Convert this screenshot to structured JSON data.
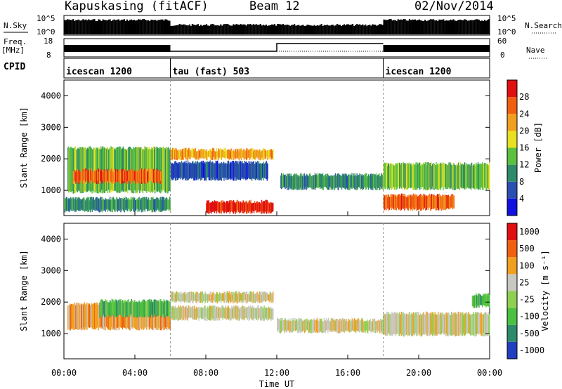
{
  "header": {
    "station": "Kapuskasing (fitACF)",
    "beam": "Beam 12",
    "date": "02/Nov/2014"
  },
  "strip_labels": {
    "nsky": "N.Sky",
    "nsky_top": "10^5",
    "nsky_bottom": "10^0",
    "nsearch": "N.Search",
    "nsearch_top": "10^5",
    "nsearch_bottom": "10^0",
    "freq": "Freq.",
    "freq_unit": "[MHz]",
    "freq_top": "18",
    "freq_bottom": "8",
    "nave": "Nave",
    "nave_top": "60",
    "nave_bottom": "0",
    "cpid": "CPID"
  },
  "cpid_segments": [
    {
      "label": "icescan 1200",
      "start_hour": 0,
      "end_hour": 6
    },
    {
      "label": "tau (fast) 503",
      "start_hour": 6,
      "end_hour": 18
    },
    {
      "label": "icescan 1200",
      "start_hour": 18,
      "end_hour": 24
    }
  ],
  "chart_data": [
    {
      "type": "heatmap",
      "title": "",
      "xlabel": "Time UT",
      "ylabel": "Slant Range [km]",
      "xlim": [
        0,
        24
      ],
      "ylim": [
        200,
        4500
      ],
      "x_ticks": [
        "00:00",
        "04:00",
        "08:00",
        "12:00",
        "16:00",
        "20:00",
        "00:00"
      ],
      "y_ticks": [
        "1000",
        "2000",
        "3000",
        "4000"
      ],
      "colorbar": {
        "label": "Power [dB]",
        "ticks": [
          "4",
          "8",
          "12",
          "16",
          "20",
          "24",
          "28"
        ],
        "colors": [
          "#1010e0",
          "#2a4fb0",
          "#2d8a6a",
          "#5cc040",
          "#e8e020",
          "#f0a020",
          "#f06010",
          "#e01010"
        ]
      },
      "regions": [
        {
          "t0": 0.2,
          "t1": 6.0,
          "r0": 900,
          "r1": 2400,
          "level": 3
        },
        {
          "t0": 0.5,
          "t1": 5.5,
          "r0": 1200,
          "r1": 1700,
          "level": 6
        },
        {
          "t0": 0.0,
          "t1": 6.0,
          "r0": 300,
          "r1": 800,
          "level": 2
        },
        {
          "t0": 6.0,
          "t1": 11.8,
          "r0": 1950,
          "r1": 2350,
          "level": 5
        },
        {
          "t0": 6.0,
          "t1": 11.5,
          "r0": 1300,
          "r1": 1950,
          "level": 1
        },
        {
          "t0": 8.0,
          "t1": 11.8,
          "r0": 250,
          "r1": 700,
          "level": 7
        },
        {
          "t0": 12.2,
          "t1": 18.0,
          "r0": 1000,
          "r1": 1550,
          "level": 2
        },
        {
          "t0": 18.0,
          "t1": 24.0,
          "r0": 1000,
          "r1": 1900,
          "level": 3
        },
        {
          "t0": 18.0,
          "t1": 22.0,
          "r0": 350,
          "r1": 900,
          "level": 6
        }
      ]
    },
    {
      "type": "heatmap",
      "title": "",
      "xlabel": "Time UT",
      "ylabel": "Slant Range [km]",
      "xlim": [
        0,
        24
      ],
      "ylim": [
        200,
        4500
      ],
      "x_ticks": [
        "00:00",
        "04:00",
        "08:00",
        "12:00",
        "16:00",
        "20:00",
        "00:00"
      ],
      "y_ticks": [
        "1000",
        "2000",
        "3000",
        "4000"
      ],
      "colorbar": {
        "label": "Velocity [m s⁻¹]",
        "ticks": [
          "1000",
          "500",
          "100",
          "25",
          "-25",
          "-100",
          "-500",
          "-1000"
        ],
        "colors": [
          "#2040c0",
          "#2d8a6a",
          "#4cc040",
          "#8fd050",
          "#c8c8c0",
          "#f0a020",
          "#f06010",
          "#e01010"
        ]
      },
      "regions": [
        {
          "t0": 0.2,
          "t1": 6.0,
          "r0": 1100,
          "r1": 2000,
          "level": 5
        },
        {
          "t0": 2.0,
          "t1": 6.0,
          "r0": 1500,
          "r1": 2100,
          "level": 2
        },
        {
          "t0": 6.0,
          "t1": 11.8,
          "r0": 1950,
          "r1": 2350,
          "level": 4
        },
        {
          "t0": 6.0,
          "t1": 11.8,
          "r0": 1400,
          "r1": 1900,
          "level": 4
        },
        {
          "t0": 12.0,
          "t1": 18.0,
          "r0": 1000,
          "r1": 1500,
          "level": 4
        },
        {
          "t0": 18.0,
          "t1": 24.0,
          "r0": 900,
          "r1": 1700,
          "level": 4
        },
        {
          "t0": 23.0,
          "t1": 24.0,
          "r0": 1800,
          "r1": 2300,
          "level": 2
        }
      ]
    }
  ]
}
